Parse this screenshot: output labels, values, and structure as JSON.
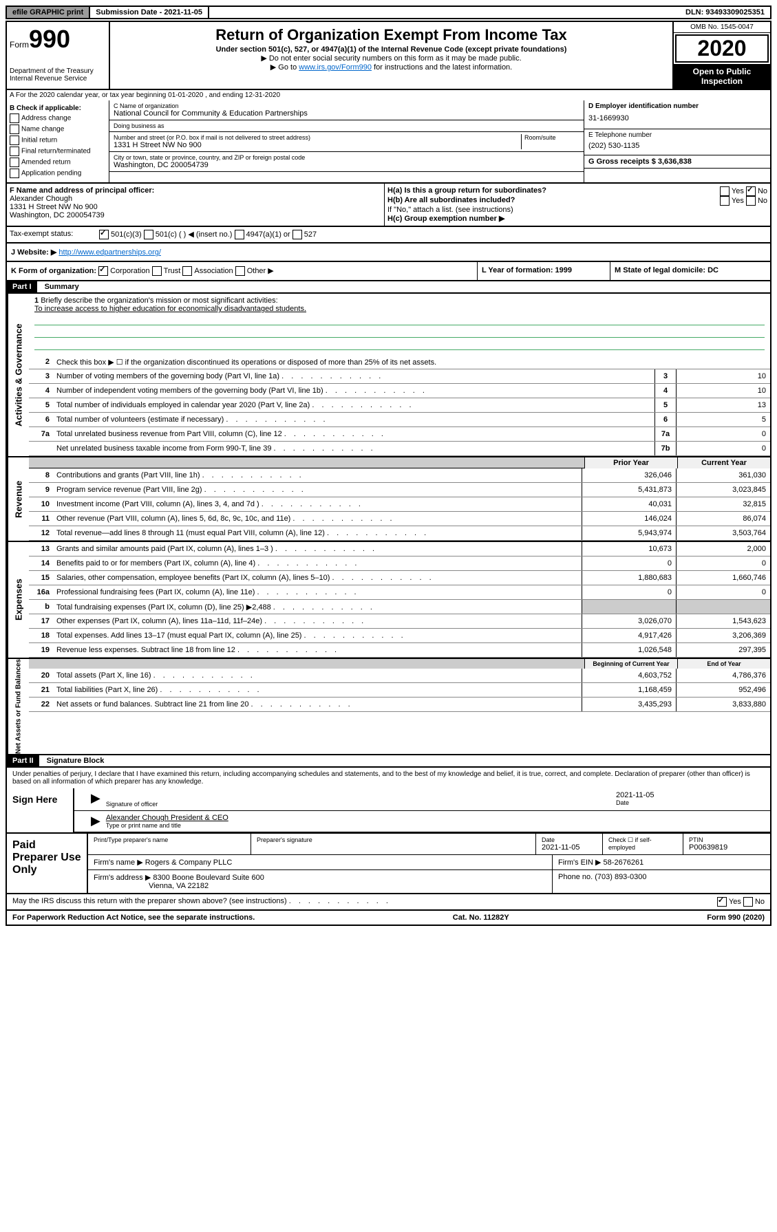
{
  "top": {
    "efile": "efile GRAPHIC print",
    "submission": "Submission Date - 2021-11-05",
    "dln": "DLN: 93493309025351"
  },
  "header": {
    "form": "Form",
    "formnum": "990",
    "dept": "Department of the Treasury\nInternal Revenue Service",
    "title": "Return of Organization Exempt From Income Tax",
    "subtitle": "Under section 501(c), 527, or 4947(a)(1) of the Internal Revenue Code (except private foundations)",
    "note1": "▶ Do not enter social security numbers on this form as it may be made public.",
    "note2_pre": "▶ Go to ",
    "note2_link": "www.irs.gov/Form990",
    "note2_post": " for instructions and the latest information.",
    "omb": "OMB No. 1545-0047",
    "year": "2020",
    "open": "Open to Public Inspection"
  },
  "lineA": "A   For the 2020 calendar year, or tax year beginning 01-01-2020    , and ending 12-31-2020",
  "boxB": {
    "label": "B Check if applicable:",
    "items": [
      "Address change",
      "Name change",
      "Initial return",
      "Final return/terminated",
      "Amended return",
      "Application pending"
    ]
  },
  "boxC": {
    "nameLabel": "C Name of organization",
    "name": "National Council for Community & Education Partnerships",
    "dba": "Doing business as",
    "addrLabel": "Number and street (or P.O. box if mail is not delivered to street address)",
    "roomLabel": "Room/suite",
    "addr": "1331 H Street NW No 900",
    "cityLabel": "City or town, state or province, country, and ZIP or foreign postal code",
    "city": "Washington, DC  200054739"
  },
  "boxD": {
    "label": "D Employer identification number",
    "val": "31-1669930"
  },
  "boxE": {
    "label": "E Telephone number",
    "val": "(202) 530-1135"
  },
  "boxG": {
    "label": "G Gross receipts $ 3,636,838"
  },
  "boxF": {
    "label": "F  Name and address of principal officer:",
    "name": "Alexander Chough",
    "addr1": "1331 H Street NW No 900",
    "addr2": "Washington, DC  200054739"
  },
  "boxH": {
    "ha": "H(a)  Is this a group return for subordinates?",
    "hb": "H(b)  Are all subordinates included?",
    "hbno": "If \"No,\" attach a list. (see instructions)",
    "hc": "H(c)  Group exemption number ▶"
  },
  "taxStatus": {
    "label": "Tax-exempt status:",
    "opts": [
      "501(c)(3)",
      "501(c) (  ) ◀ (insert no.)",
      "4947(a)(1) or",
      "527"
    ]
  },
  "website": {
    "label": "J   Website: ▶",
    "url": "http://www.edpartnerships.org/"
  },
  "rowK": {
    "label": "K Form of organization:",
    "opts": [
      "Corporation",
      "Trust",
      "Association",
      "Other ▶"
    ],
    "year": "L Year of formation: 1999",
    "state": "M State of legal domicile: DC"
  },
  "part1": {
    "header": "Part I",
    "title": "Summary",
    "line1": "Briefly describe the organization's mission or most significant activities:",
    "mission": "To increase access to higher education for economically disadvantaged students.",
    "line2": "Check this box ▶ ☐  if the organization discontinued its operations or disposed of more than 25% of its net assets.",
    "rows": [
      {
        "n": "3",
        "t": "Number of voting members of the governing body (Part VI, line 1a)",
        "b": "3",
        "v": "10"
      },
      {
        "n": "4",
        "t": "Number of independent voting members of the governing body (Part VI, line 1b)",
        "b": "4",
        "v": "10"
      },
      {
        "n": "5",
        "t": "Total number of individuals employed in calendar year 2020 (Part V, line 2a)",
        "b": "5",
        "v": "13"
      },
      {
        "n": "6",
        "t": "Total number of volunteers (estimate if necessary)",
        "b": "6",
        "v": "5"
      },
      {
        "n": "7a",
        "t": "Total unrelated business revenue from Part VIII, column (C), line 12",
        "b": "7a",
        "v": "0"
      },
      {
        "n": "",
        "t": "Net unrelated business taxable income from Form 990-T, line 39",
        "b": "7b",
        "v": "0"
      }
    ],
    "colHeaders": {
      "prior": "Prior Year",
      "current": "Current Year"
    },
    "revenue": [
      {
        "n": "8",
        "t": "Contributions and grants (Part VIII, line 1h)",
        "p": "326,046",
        "c": "361,030"
      },
      {
        "n": "9",
        "t": "Program service revenue (Part VIII, line 2g)",
        "p": "5,431,873",
        "c": "3,023,845"
      },
      {
        "n": "10",
        "t": "Investment income (Part VIII, column (A), lines 3, 4, and 7d )",
        "p": "40,031",
        "c": "32,815"
      },
      {
        "n": "11",
        "t": "Other revenue (Part VIII, column (A), lines 5, 6d, 8c, 9c, 10c, and 11e)",
        "p": "146,024",
        "c": "86,074"
      },
      {
        "n": "12",
        "t": "Total revenue—add lines 8 through 11 (must equal Part VIII, column (A), line 12)",
        "p": "5,943,974",
        "c": "3,503,764"
      }
    ],
    "expenses": [
      {
        "n": "13",
        "t": "Grants and similar amounts paid (Part IX, column (A), lines 1–3 )",
        "p": "10,673",
        "c": "2,000"
      },
      {
        "n": "14",
        "t": "Benefits paid to or for members (Part IX, column (A), line 4)",
        "p": "0",
        "c": "0"
      },
      {
        "n": "15",
        "t": "Salaries, other compensation, employee benefits (Part IX, column (A), lines 5–10)",
        "p": "1,880,683",
        "c": "1,660,746"
      },
      {
        "n": "16a",
        "t": "Professional fundraising fees (Part IX, column (A), line 11e)",
        "p": "0",
        "c": "0"
      },
      {
        "n": "b",
        "t": "Total fundraising expenses (Part IX, column (D), line 25) ▶2,488",
        "p": "",
        "c": ""
      },
      {
        "n": "17",
        "t": "Other expenses (Part IX, column (A), lines 11a–11d, 11f–24e)",
        "p": "3,026,070",
        "c": "1,543,623"
      },
      {
        "n": "18",
        "t": "Total expenses. Add lines 13–17 (must equal Part IX, column (A), line 25)",
        "p": "4,917,426",
        "c": "3,206,369"
      },
      {
        "n": "19",
        "t": "Revenue less expenses. Subtract line 18 from line 12",
        "p": "1,026,548",
        "c": "297,395"
      }
    ],
    "netHeaders": {
      "begin": "Beginning of Current Year",
      "end": "End of Year"
    },
    "net": [
      {
        "n": "20",
        "t": "Total assets (Part X, line 16)",
        "p": "4,603,752",
        "c": "4,786,376"
      },
      {
        "n": "21",
        "t": "Total liabilities (Part X, line 26)",
        "p": "1,168,459",
        "c": "952,496"
      },
      {
        "n": "22",
        "t": "Net assets or fund balances. Subtract line 21 from line 20",
        "p": "3,435,293",
        "c": "3,833,880"
      }
    ]
  },
  "part2": {
    "header": "Part II",
    "title": "Signature Block",
    "text": "Under penalties of perjury, I declare that I have examined this return, including accompanying schedules and statements, and to the best of my knowledge and belief, it is true, correct, and complete. Declaration of preparer (other than officer) is based on all information of which preparer has any knowledge.",
    "signHere": "Sign Here",
    "sigOfficer": "Signature of officer",
    "sigDate": "2021-11-05",
    "dateLabel": "Date",
    "officerName": "Alexander Chough  President & CEO",
    "typeLabel": "Type or print name and title"
  },
  "paid": {
    "label": "Paid Preparer Use Only",
    "h1": "Print/Type preparer's name",
    "h2": "Preparer's signature",
    "h3": "Date",
    "h3v": "2021-11-05",
    "h4": "Check ☐ if self-employed",
    "h5": "PTIN",
    "h5v": "P00639819",
    "firm": "Firm's name      ▶ Rogers & Company PLLC",
    "ein": "Firm's EIN ▶ 58-2676261",
    "addr": "Firm's address ▶ 8300 Boone Boulevard Suite 600",
    "addr2": "Vienna, VA  22182",
    "phone": "Phone no. (703) 893-0300"
  },
  "footer": {
    "discuss": "May the IRS discuss this return with the preparer shown above? (see instructions)",
    "paperwork": "For Paperwork Reduction Act Notice, see the separate instructions.",
    "cat": "Cat. No. 11282Y",
    "form": "Form 990 (2020)"
  }
}
